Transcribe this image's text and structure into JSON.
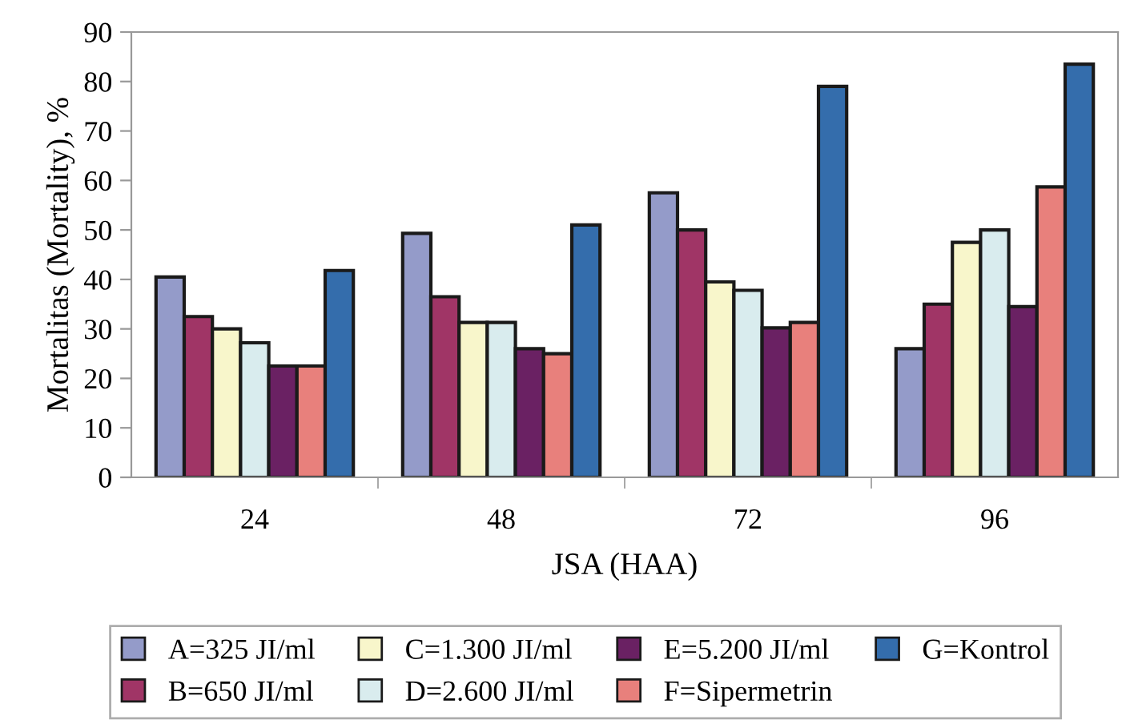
{
  "chart_data": {
    "type": "bar",
    "xlabel": "JSA (HAA)",
    "ylabel": "Mortalitas (Mortality), %",
    "categories": [
      "24",
      "48",
      "72",
      "96"
    ],
    "series": [
      {
        "name": "A=325 JI/ml",
        "color": "#949bc9",
        "values": [
          40.5,
          49.3,
          57.5,
          26
        ]
      },
      {
        "name": "B=650 JI/ml",
        "color": "#a03566",
        "values": [
          32.5,
          36.5,
          50,
          35
        ]
      },
      {
        "name": "C=1.300 JI/ml",
        "color": "#f8f6cb",
        "values": [
          30,
          31.3,
          39.5,
          47.5
        ]
      },
      {
        "name": "D=2.600 JI/ml",
        "color": "#d9ecee",
        "values": [
          27.2,
          31.3,
          37.8,
          50
        ]
      },
      {
        "name": "E=5.200 JI/ml",
        "color": "#6a2163",
        "values": [
          22.5,
          26,
          30.2,
          34.5
        ]
      },
      {
        "name": "F=Sipermetrin",
        "color": "#e8807c",
        "values": [
          22.5,
          25,
          31.3,
          58.7
        ]
      },
      {
        "name": "G=Kontrol",
        "color": "#346dac",
        "values": [
          41.8,
          51,
          79,
          83.5
        ]
      }
    ],
    "ylim": [
      0,
      90
    ],
    "yticks": [
      0,
      10,
      20,
      30,
      40,
      50,
      60,
      70,
      80,
      90
    ],
    "grid": false,
    "legend": "bottom"
  }
}
